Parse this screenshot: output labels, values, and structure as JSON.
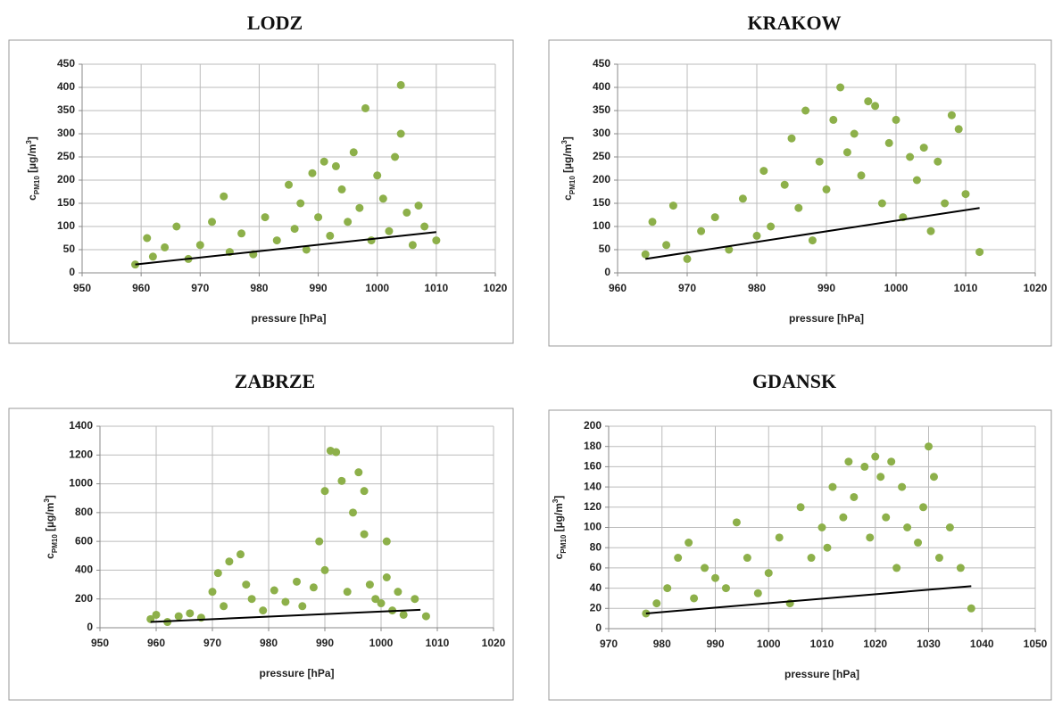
{
  "chart_data": [
    {
      "type": "scatter",
      "title": "LODZ",
      "xlabel": "pressure [hPa]",
      "ylabel": [
        "c",
        "PM10",
        " [µg/m",
        "3",
        "]"
      ],
      "color": "#8db04a",
      "grid": true,
      "xlim": [
        950,
        1020
      ],
      "xticks": [
        950,
        960,
        970,
        980,
        990,
        1000,
        1010,
        1020
      ],
      "ylim": [
        0,
        450
      ],
      "yticks": [
        0,
        50,
        100,
        150,
        200,
        250,
        300,
        350,
        400,
        450
      ],
      "x": [
        959,
        961,
        962,
        964,
        966,
        968,
        970,
        972,
        974,
        975,
        977,
        979,
        981,
        983,
        985,
        986,
        987,
        988,
        989,
        990,
        991,
        992,
        993,
        994,
        995,
        996,
        997,
        998,
        999,
        1000,
        1001,
        1002,
        1003,
        1004,
        1004,
        1005,
        1006,
        1007,
        1008,
        1010
      ],
      "values": [
        18,
        75,
        35,
        55,
        100,
        30,
        60,
        110,
        165,
        45,
        85,
        40,
        120,
        70,
        190,
        95,
        150,
        50,
        215,
        120,
        240,
        80,
        230,
        180,
        110,
        260,
        140,
        355,
        70,
        210,
        160,
        90,
        250,
        405,
        300,
        130,
        60,
        145,
        100,
        70
      ],
      "trendline": {
        "x": [
          959,
          1010
        ],
        "values": [
          18,
          88
        ],
        "color": "#000000"
      }
    },
    {
      "type": "scatter",
      "title": "KRAKOW",
      "xlabel": "pressure [hPa]",
      "ylabel": [
        "c",
        "PM10",
        " [µg/m",
        "3",
        "]"
      ],
      "color": "#8db04a",
      "grid": true,
      "xlim": [
        960,
        1020
      ],
      "xticks": [
        960,
        970,
        980,
        990,
        1000,
        1010,
        1020
      ],
      "ylim": [
        0,
        450
      ],
      "yticks": [
        0,
        50,
        100,
        150,
        200,
        250,
        300,
        350,
        400,
        450
      ],
      "x": [
        964,
        965,
        967,
        968,
        970,
        972,
        974,
        976,
        978,
        980,
        981,
        982,
        984,
        985,
        986,
        987,
        988,
        989,
        990,
        991,
        992,
        993,
        994,
        995,
        996,
        997,
        998,
        999,
        1000,
        1001,
        1002,
        1003,
        1004,
        1005,
        1006,
        1007,
        1008,
        1009,
        1010,
        1012
      ],
      "values": [
        40,
        110,
        60,
        145,
        30,
        90,
        120,
        50,
        160,
        80,
        220,
        100,
        190,
        290,
        140,
        350,
        70,
        240,
        180,
        330,
        400,
        260,
        300,
        210,
        370,
        360,
        150,
        280,
        330,
        120,
        250,
        200,
        270,
        90,
        240,
        150,
        340,
        310,
        170,
        45
      ],
      "trendline": {
        "x": [
          964,
          1012
        ],
        "values": [
          30,
          140
        ],
        "color": "#000000"
      }
    },
    {
      "type": "scatter",
      "title": "ZABRZE",
      "xlabel": "pressure [hPa]",
      "ylabel": [
        "c",
        "PM10",
        " [µg/m",
        "3",
        "]"
      ],
      "color": "#8db04a",
      "grid": true,
      "xlim": [
        950,
        1020
      ],
      "xticks": [
        950,
        960,
        970,
        980,
        990,
        1000,
        1010,
        1020
      ],
      "ylim": [
        0,
        1400
      ],
      "yticks": [
        0,
        200,
        400,
        600,
        800,
        1000,
        1200,
        1400
      ],
      "x": [
        959,
        960,
        962,
        964,
        966,
        968,
        970,
        971,
        972,
        973,
        975,
        976,
        977,
        979,
        981,
        983,
        985,
        986,
        988,
        989,
        990,
        990,
        991,
        992,
        993,
        994,
        995,
        996,
        997,
        997,
        998,
        999,
        1000,
        1001,
        1001,
        1002,
        1003,
        1004,
        1006,
        1008
      ],
      "values": [
        60,
        90,
        40,
        80,
        100,
        70,
        250,
        380,
        150,
        460,
        510,
        300,
        200,
        120,
        260,
        180,
        320,
        150,
        280,
        600,
        950,
        400,
        1230,
        1220,
        1020,
        250,
        800,
        1080,
        650,
        950,
        300,
        200,
        170,
        600,
        350,
        120,
        250,
        90,
        200,
        80
      ],
      "trendline": {
        "x": [
          959,
          1007
        ],
        "values": [
          40,
          125
        ],
        "color": "#000000"
      }
    },
    {
      "type": "scatter",
      "title": "GDANSK",
      "xlabel": "pressure [hPa]",
      "ylabel": [
        "c",
        "PM10",
        " [µg/m",
        "3",
        "]"
      ],
      "color": "#8db04a",
      "grid": true,
      "xlim": [
        970,
        1050
      ],
      "xticks": [
        970,
        980,
        990,
        1000,
        1010,
        1020,
        1030,
        1040,
        1050
      ],
      "ylim": [
        0,
        200
      ],
      "yticks": [
        0,
        20,
        40,
        60,
        80,
        100,
        120,
        140,
        160,
        180,
        200
      ],
      "x": [
        977,
        979,
        981,
        983,
        985,
        986,
        988,
        990,
        992,
        994,
        996,
        998,
        1000,
        1002,
        1004,
        1006,
        1008,
        1010,
        1011,
        1012,
        1014,
        1015,
        1016,
        1018,
        1019,
        1020,
        1021,
        1022,
        1023,
        1024,
        1025,
        1026,
        1028,
        1029,
        1030,
        1031,
        1032,
        1034,
        1036,
        1038
      ],
      "values": [
        15,
        25,
        40,
        70,
        85,
        30,
        60,
        50,
        40,
        105,
        70,
        35,
        55,
        90,
        25,
        120,
        70,
        100,
        80,
        140,
        110,
        165,
        130,
        160,
        90,
        170,
        150,
        110,
        165,
        60,
        140,
        100,
        85,
        120,
        180,
        150,
        70,
        100,
        60,
        20
      ],
      "trendline": {
        "x": [
          977,
          1038
        ],
        "values": [
          15,
          42
        ],
        "color": "#000000"
      }
    }
  ]
}
